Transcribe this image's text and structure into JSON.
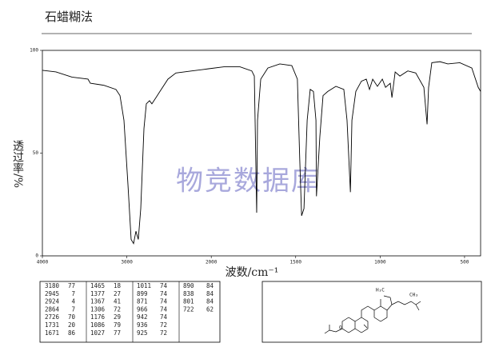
{
  "chart_data": {
    "type": "line",
    "title": "石蜡糊法",
    "x_label": "波数/cm⁻¹",
    "y_label": "透过率/%",
    "color": "#000000",
    "xlim": [
      4000,
      405
    ],
    "xticks": [
      4000,
      3000,
      2000,
      1500,
      1000,
      500
    ],
    "ylim": [
      0,
      100
    ],
    "yticks": [
      0,
      50,
      100
    ],
    "x": [
      4000,
      3839,
      3650,
      3460,
      3432,
      3271,
      3129,
      3081,
      3034,
      2987,
      2949,
      2920,
      2892,
      2864,
      2835,
      2797,
      2769,
      2731,
      2703,
      2655,
      2608,
      2513,
      2419,
      2229,
      2040,
      1925,
      1830,
      1760,
      1745,
      1731,
      1726,
      1707,
      1665,
      1594,
      1523,
      1490,
      1476,
      1465,
      1451,
      1432,
      1414,
      1395,
      1380,
      1377,
      1357,
      1338,
      1310,
      1262,
      1215,
      1196,
      1176,
      1167,
      1144,
      1111,
      1082,
      1063,
      1044,
      1016,
      987,
      968,
      940,
      930,
      911,
      883,
      836,
      789,
      741,
      722,
      713,
      694,
      646,
      599,
      528,
      457,
      419,
      405
    ],
    "values": [
      90.3,
      89.5,
      87,
      86,
      84,
      83,
      81,
      78,
      66,
      35,
      8,
      6,
      12,
      8,
      23,
      62,
      74,
      75.5,
      74,
      77,
      80,
      86,
      89,
      90,
      91,
      92,
      92,
      90,
      87.5,
      21,
      66,
      86,
      91.4,
      93.4,
      92.6,
      86,
      47,
      19.5,
      23,
      66,
      81,
      80,
      66,
      29,
      58,
      78,
      80,
      82.5,
      81,
      66,
      31,
      66,
      80,
      85,
      86,
      81,
      86,
      82.5,
      86,
      82,
      84,
      77,
      89.5,
      87.5,
      90,
      89,
      82,
      64,
      82,
      94,
      94.5,
      93.4,
      94,
      91.4,
      82,
      80
    ]
  },
  "watermark": "物竞数据库",
  "peak_table": [
    [
      [
        3180,
        77
      ],
      [
        2945,
        7
      ],
      [
        2924,
        4
      ],
      [
        2864,
        7
      ],
      [
        2726,
        70
      ],
      [
        1731,
        20
      ],
      [
        1671,
        86
      ]
    ],
    [
      [
        1465,
        18
      ],
      [
        1377,
        27
      ],
      [
        1367,
        41
      ],
      [
        1306,
        72
      ],
      [
        1176,
        29
      ],
      [
        1086,
        79
      ],
      [
        1027,
        77
      ]
    ],
    [
      [
        1011,
        74
      ],
      [
        899,
        74
      ],
      [
        871,
        74
      ],
      [
        966,
        74
      ],
      [
        942,
        74
      ],
      [
        936,
        72
      ],
      [
        925,
        72
      ]
    ],
    [
      [
        890,
        84
      ],
      [
        838,
        84
      ],
      [
        801,
        84
      ],
      [
        722,
        62
      ]
    ]
  ],
  "structure": {
    "labels": [
      "H₃C",
      "CH₃",
      "O"
    ]
  }
}
